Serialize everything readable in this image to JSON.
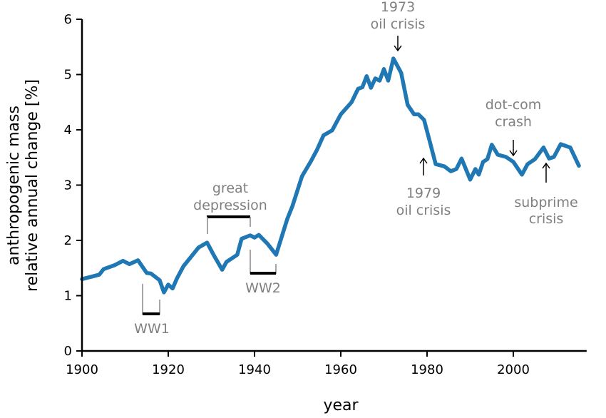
{
  "chart_data": {
    "type": "line",
    "title": "",
    "xlabel": "year",
    "ylabel_lines": [
      "anthropogenic mass",
      "relative annual change [%]"
    ],
    "xlim": [
      1900,
      2017
    ],
    "ylim": [
      0,
      6
    ],
    "xticks": [
      1900,
      1920,
      1940,
      1960,
      1980,
      2000
    ],
    "yticks": [
      0,
      1,
      2,
      3,
      4,
      5,
      6
    ],
    "grid": false,
    "color": "#1f77b4",
    "series": [
      {
        "name": "anthropogenic mass relative annual change",
        "x": [
          1900,
          1904,
          1905,
          1907.5,
          1909.5,
          1911,
          1913,
          1915,
          1916,
          1918,
          1919,
          1920,
          1921,
          1922,
          1923.5,
          1927,
          1929,
          1930.5,
          1932.5,
          1933.5,
          1936,
          1937,
          1939,
          1940,
          1941,
          1943,
          1945,
          1947.6,
          1948.8,
          1951,
          1953,
          1954.5,
          1956,
          1958,
          1960,
          1962.5,
          1964,
          1965,
          1966,
          1967,
          1968,
          1969,
          1970,
          1971,
          1972.2,
          1974,
          1975.5,
          1977,
          1978,
          1979.3,
          1980.7,
          1982,
          1984,
          1985.5,
          1986.8,
          1988,
          1990,
          1991.2,
          1992,
          1993,
          1994,
          1995,
          1996.4,
          1998.3,
          2000,
          2002,
          2003.3,
          2005,
          2007,
          2008.3,
          2009.4,
          2011,
          2013.2,
          2015.2
        ],
        "y": [
          1.3,
          1.38,
          1.48,
          1.55,
          1.63,
          1.57,
          1.64,
          1.41,
          1.4,
          1.28,
          1.06,
          1.2,
          1.13,
          1.31,
          1.53,
          1.87,
          1.96,
          1.74,
          1.47,
          1.61,
          1.74,
          2.03,
          2.09,
          2.05,
          2.1,
          1.94,
          1.74,
          2.39,
          2.62,
          3.16,
          3.42,
          3.64,
          3.9,
          3.99,
          4.28,
          4.5,
          4.74,
          4.77,
          4.97,
          4.76,
          4.93,
          4.89,
          5.1,
          4.89,
          5.29,
          5.03,
          4.45,
          4.28,
          4.28,
          4.18,
          3.77,
          3.38,
          3.34,
          3.25,
          3.29,
          3.48,
          3.1,
          3.29,
          3.19,
          3.42,
          3.47,
          3.73,
          3.55,
          3.51,
          3.42,
          3.19,
          3.38,
          3.47,
          3.68,
          3.48,
          3.51,
          3.74,
          3.68,
          3.35
        ]
      }
    ],
    "annotations": {
      "oil1973": {
        "lines": [
          "1973",
          "oil crisis"
        ],
        "year": 1973,
        "arrow": "down"
      },
      "oil1979": {
        "lines": [
          "1979",
          "oil crisis"
        ],
        "year": 1979,
        "arrow": "up"
      },
      "dotcom": {
        "lines": [
          "dot-com",
          "crash"
        ],
        "year": 2000,
        "arrow": "down"
      },
      "subprime": {
        "lines": [
          "subprime",
          "crisis"
        ],
        "year": 2008,
        "arrow": "up"
      },
      "ww1": {
        "label": "WW1",
        "start": 1914,
        "end": 1918
      },
      "depression": {
        "lines": [
          "great",
          "depression"
        ],
        "start": 1929,
        "end": 1939
      },
      "ww2": {
        "label": "WW2",
        "start": 1939,
        "end": 1945
      }
    }
  }
}
